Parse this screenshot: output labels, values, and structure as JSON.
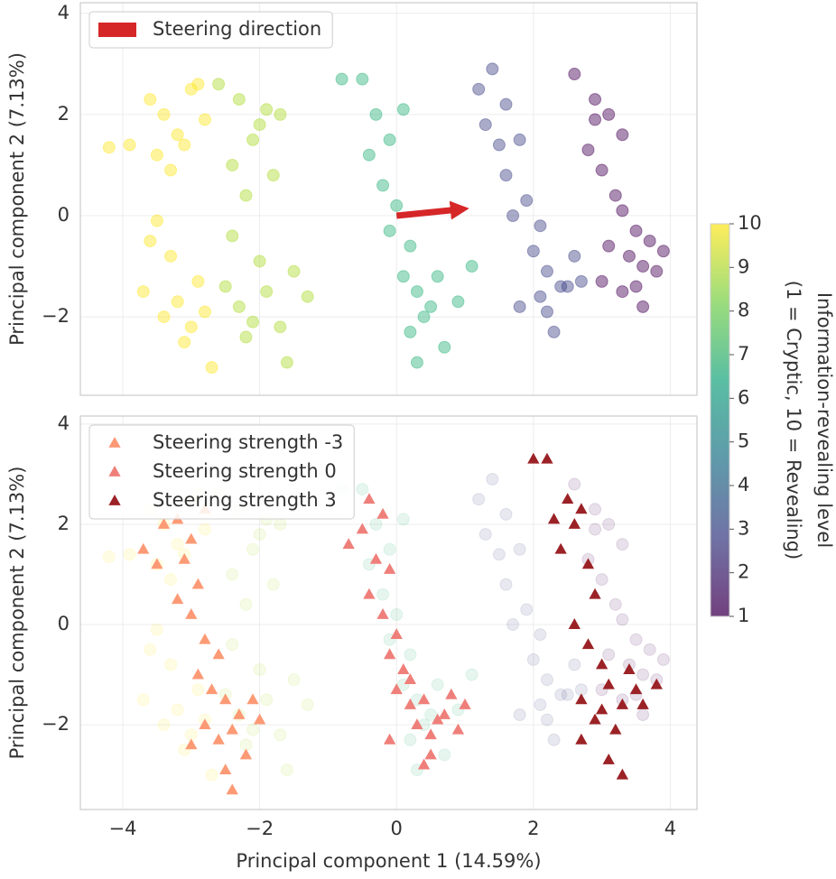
{
  "chart_data": [
    {
      "type": "scatter",
      "ylabel": "Principal component 2 (7.13%)",
      "xlim": [
        -4.62,
        4.39
      ],
      "ylim": [
        -3.55,
        4.21
      ],
      "xticks": [
        -4,
        -2,
        0,
        2,
        4
      ],
      "show_xtick_labels": false,
      "yticks": [
        {
          "value": 4,
          "label": "4"
        },
        {
          "value": 2,
          "label": "2"
        },
        {
          "value": 0,
          "label": "0"
        },
        {
          "value": -2,
          "label": "−2"
        }
      ],
      "grid": true,
      "alpha": 0.45,
      "annotation": {
        "type": "arrow",
        "label": "Steering direction",
        "color": "#d62728",
        "x": [
          0,
          1.0
        ],
        "y": [
          0,
          0.15
        ]
      },
      "legend": "upper left",
      "series": [
        {
          "marker": "circle",
          "color": "#fde725",
          "x": [
            -3.9,
            -3.6,
            -3.4,
            -3.2,
            -3.0,
            -2.8,
            -3.5,
            -3.3,
            -3.1,
            -2.9,
            -3.7,
            -3.4,
            -3.2,
            -3.0,
            -2.8,
            -3.6,
            -3.3,
            -3.1,
            -2.9,
            -2.7,
            -4.2,
            -3.5
          ],
          "values": [
            1.4,
            2.3,
            2.0,
            1.6,
            2.5,
            1.9,
            1.2,
            0.9,
            1.4,
            2.6,
            -1.5,
            -2.0,
            -1.7,
            -2.2,
            -1.9,
            -0.5,
            -0.8,
            -2.5,
            -1.3,
            -3.0,
            1.35,
            -0.1
          ]
        },
        {
          "marker": "circle",
          "color": "#addc30",
          "x": [
            -2.6,
            -2.3,
            -2.1,
            -1.9,
            -2.4,
            -2.2,
            -2.0,
            -1.7,
            -2.5,
            -2.3,
            -2.1,
            -1.9,
            -1.7,
            -1.5,
            -2.4,
            -2.0,
            -1.6,
            -1.3,
            -2.2,
            -1.8
          ],
          "values": [
            2.6,
            2.3,
            1.5,
            2.1,
            1.0,
            0.4,
            1.8,
            2.0,
            -1.4,
            -1.8,
            -2.1,
            -1.5,
            -2.2,
            -1.1,
            -0.4,
            -0.9,
            -2.9,
            -1.6,
            -2.4,
            0.8
          ]
        },
        {
          "marker": "circle",
          "color": "#2fb47c",
          "x": [
            -0.8,
            -0.5,
            -0.3,
            -0.1,
            0.1,
            -0.4,
            -0.2,
            0.0,
            0.2,
            -0.1,
            0.1,
            0.3,
            0.5,
            0.4,
            0.2,
            0.7,
            0.9,
            0.6,
            0.3,
            1.1
          ],
          "values": [
            2.7,
            2.7,
            2.0,
            1.5,
            2.1,
            1.2,
            0.6,
            0.2,
            -0.6,
            -0.3,
            -1.2,
            -1.5,
            -1.8,
            -2.0,
            -2.3,
            -2.6,
            -1.7,
            -1.2,
            -2.9,
            -1.0
          ]
        },
        {
          "marker": "circle",
          "color": "#414487",
          "x": [
            1.4,
            1.6,
            1.3,
            1.5,
            1.8,
            1.2,
            1.6,
            1.9,
            2.1,
            1.7,
            2.0,
            2.2,
            2.4,
            2.6,
            2.1,
            2.3,
            1.8,
            2.5,
            2.2,
            2.7
          ],
          "values": [
            2.9,
            2.2,
            1.8,
            1.4,
            1.5,
            2.5,
            0.8,
            0.3,
            -0.2,
            0.0,
            -0.7,
            -1.1,
            -1.4,
            -0.8,
            -1.6,
            -2.3,
            -1.8,
            -1.4,
            -1.9,
            -1.3
          ]
        },
        {
          "marker": "circle",
          "color": "#440154",
          "x": [
            2.6,
            2.9,
            3.1,
            3.3,
            2.8,
            3.0,
            3.2,
            2.9,
            3.3,
            3.5,
            3.1,
            3.4,
            3.6,
            3.8,
            3.5,
            3.7,
            3.3,
            3.9,
            3.0,
            3.6
          ],
          "values": [
            2.8,
            2.3,
            2.0,
            1.6,
            1.3,
            0.9,
            0.4,
            1.9,
            0.1,
            -0.3,
            -0.6,
            -0.8,
            -1.0,
            -1.1,
            -1.4,
            -0.5,
            -1.5,
            -0.7,
            -1.3,
            -1.8
          ]
        }
      ]
    },
    {
      "type": "scatter",
      "xlabel": "Principal component 1 (14.59%)",
      "ylabel": "Principal component 2 (7.13%)",
      "xlim": [
        -4.62,
        4.39
      ],
      "ylim": [
        -3.69,
        4.16
      ],
      "xticks": [
        {
          "value": -4,
          "label": "−4"
        },
        {
          "value": -2,
          "label": "−2"
        },
        {
          "value": 0,
          "label": "0"
        },
        {
          "value": 2,
          "label": "2"
        },
        {
          "value": 4,
          "label": "4"
        }
      ],
      "show_xtick_labels": true,
      "yticks": [
        {
          "value": 4,
          "label": "4"
        },
        {
          "value": 2,
          "label": "2"
        },
        {
          "value": 0,
          "label": "0"
        },
        {
          "value": -2,
          "label": "−2"
        }
      ],
      "grid": true,
      "background_alpha": 0.12,
      "legend": "upper left",
      "series": [
        {
          "name": "Steering strength -3",
          "marker": "triangle",
          "color": "#fc9a76",
          "x": [
            -3.7,
            -3.4,
            -3.2,
            -3.0,
            -2.8,
            -3.5,
            -3.1,
            -2.9,
            -3.2,
            -3.0,
            -2.8,
            -2.6,
            -2.9,
            -2.7,
            -2.5,
            -2.3,
            -2.1,
            -2.8,
            -2.6,
            -2.4,
            -2.2,
            -2.5,
            -3.0,
            -2.0,
            -2.4
          ],
          "values": [
            1.5,
            2.0,
            2.1,
            1.7,
            2.3,
            1.2,
            1.3,
            0.8,
            0.5,
            0.2,
            -0.3,
            -0.6,
            -1.0,
            -1.3,
            -1.5,
            -1.8,
            -1.5,
            -2.0,
            -2.3,
            -2.1,
            -2.6,
            -2.9,
            -2.4,
            -1.9,
            -3.3
          ]
        },
        {
          "name": "Steering strength 0",
          "marker": "triangle",
          "color": "#ef7f7a",
          "x": [
            -0.7,
            -0.4,
            -0.2,
            -0.5,
            -0.3,
            -0.1,
            -0.4,
            -0.2,
            0.0,
            -0.1,
            0.1,
            0.0,
            0.2,
            0.4,
            0.6,
            0.3,
            0.5,
            0.8,
            0.7,
            1.0,
            0.4,
            -0.1,
            0.2,
            0.5,
            0.9
          ],
          "values": [
            1.6,
            2.5,
            2.2,
            1.9,
            1.3,
            1.1,
            0.6,
            0.2,
            -0.2,
            -0.6,
            -0.9,
            -1.3,
            -1.6,
            -1.5,
            -1.9,
            -2.0,
            -2.2,
            -1.4,
            -1.8,
            -1.6,
            -2.8,
            -2.3,
            -1.1,
            -2.6,
            -2.1
          ]
        },
        {
          "name": "Steering strength 3",
          "marker": "triangle",
          "color": "#9b2226",
          "x": [
            2.0,
            2.2,
            2.5,
            2.7,
            2.3,
            2.6,
            2.4,
            2.8,
            2.9,
            2.6,
            2.8,
            3.0,
            3.1,
            2.7,
            3.0,
            3.3,
            3.5,
            3.2,
            2.9,
            3.4,
            2.7,
            3.1,
            3.6,
            3.8,
            3.3
          ],
          "values": [
            3.3,
            3.3,
            2.5,
            2.3,
            2.1,
            2.0,
            1.5,
            1.2,
            0.6,
            0.0,
            -0.4,
            -0.8,
            -1.2,
            -1.5,
            -1.7,
            -1.6,
            -1.3,
            -2.1,
            -1.9,
            -0.9,
            -2.3,
            -2.7,
            -1.6,
            -1.2,
            -3.0
          ]
        }
      ]
    }
  ],
  "colorbar": {
    "label": [
      "Information-revealing level",
      "(1 = Cryptic, 10 = Revealing)"
    ],
    "clim": [
      1,
      10
    ],
    "ticks": [
      1,
      2,
      3,
      4,
      5,
      6,
      7,
      8,
      9,
      10
    ],
    "colors": [
      "#440154",
      "#414487",
      "#2a788e",
      "#22a884",
      "#7ad151",
      "#fde725"
    ]
  }
}
